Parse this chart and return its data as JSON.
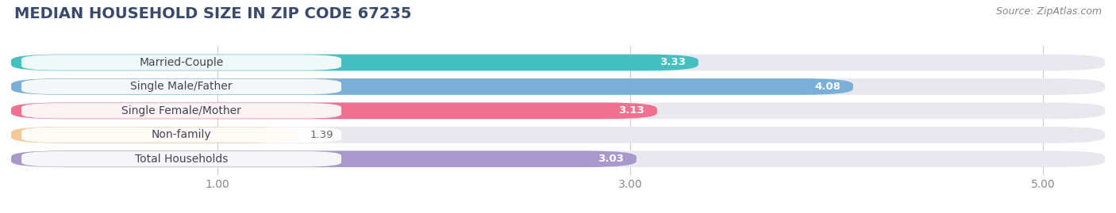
{
  "title": "MEDIAN HOUSEHOLD SIZE IN ZIP CODE 67235",
  "source": "Source: ZipAtlas.com",
  "categories": [
    "Married-Couple",
    "Single Male/Father",
    "Single Female/Mother",
    "Non-family",
    "Total Households"
  ],
  "values": [
    3.33,
    4.08,
    3.13,
    1.39,
    3.03
  ],
  "bar_colors": [
    "#45bfbf",
    "#7ab0d8",
    "#f07090",
    "#f5c896",
    "#a898cc"
  ],
  "xlim": [
    0,
    5.3
  ],
  "xmin": 0,
  "xticks": [
    1.0,
    3.0,
    5.0
  ],
  "xtick_labels": [
    "1.00",
    "3.00",
    "5.00"
  ],
  "background_color": "#ffffff",
  "bar_bg_color": "#e8e8ee",
  "title_color": "#3a4a6a",
  "title_fontsize": 14,
  "label_fontsize": 10,
  "value_fontsize": 9.5,
  "source_fontsize": 9
}
